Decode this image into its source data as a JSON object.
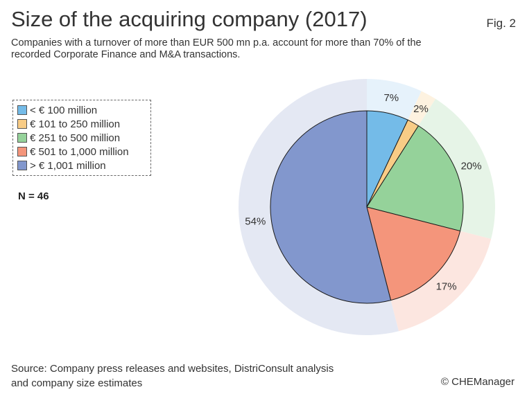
{
  "header": {
    "title": "Size of the acquiring company (2017)",
    "fig_label": "Fig. 2",
    "subtitle": "Companies with a turnover of more than EUR 500 mn p.a. account for more than 70% of the recorded Corporate Finance and M&A transactions."
  },
  "legend": {
    "items": [
      {
        "label": "< € 100 million",
        "color": "#74bbe8"
      },
      {
        "label": "€ 101 to 250 million",
        "color": "#f8cc86"
      },
      {
        "label": "€ 251 to 500 million",
        "color": "#95d29a"
      },
      {
        "label": "€ 501 to 1,000 million",
        "color": "#f4957b"
      },
      {
        "label": "> € 1,001 million",
        "color": "#8297cd"
      }
    ]
  },
  "n_label": "N = 46",
  "chart_data": {
    "type": "pie",
    "categories": [
      "< € 100 million",
      "€ 101 to 250 million",
      "€ 251 to 500 million",
      "€ 501 to 1,000 million",
      "> € 1,001 million"
    ],
    "values": [
      7,
      2,
      20,
      17,
      54
    ],
    "data_labels": [
      "7%",
      "2%",
      "20%",
      "17%",
      "54%"
    ],
    "colors": [
      "#74bbe8",
      "#f8cc86",
      "#95d29a",
      "#f4957b",
      "#8297cd"
    ],
    "halo_colors": [
      "#e6f2fb",
      "#fdf2e0",
      "#e6f4e7",
      "#fce6e0",
      "#e4e8f3"
    ],
    "start_angle": "12 o'clock",
    "direction": "clockwise",
    "legend_position": "left"
  },
  "footer": {
    "source_line1": "Source: Company press releases and websites, DistriConsult analysis",
    "source_line2": "and company size estimates",
    "copyright": "© CHEManager"
  }
}
